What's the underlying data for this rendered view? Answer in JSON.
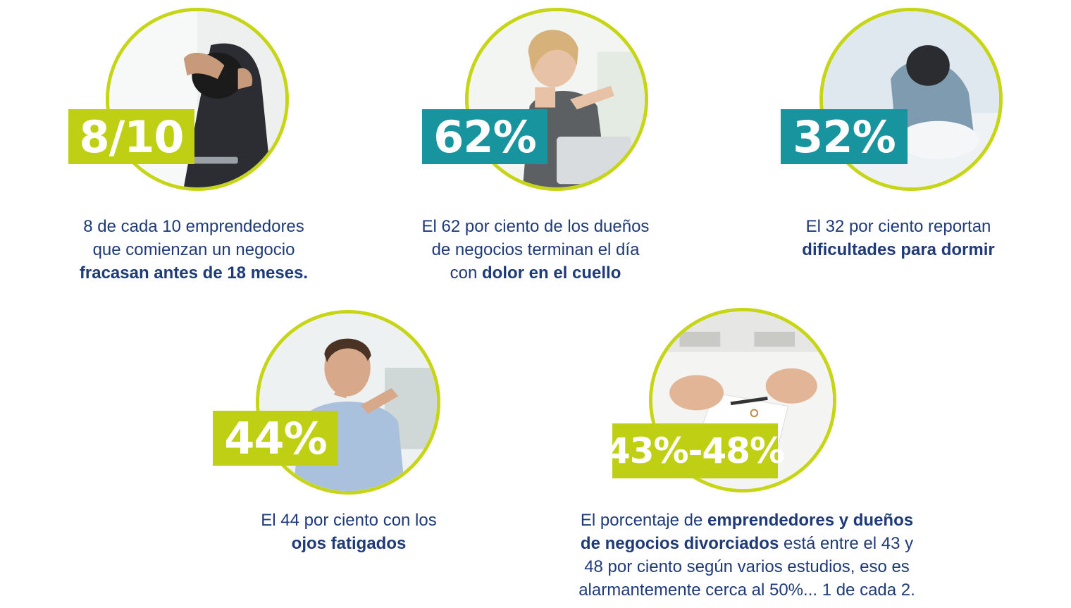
{
  "colors": {
    "lime": "#c6d617",
    "lime_badge": "#bfcf13",
    "teal": "#17949e",
    "text": "#1f3a78"
  },
  "stats": [
    {
      "badge": "8/10",
      "badge_color": "lime",
      "photo": "stressed-man-at-laptop-photo",
      "lines": [
        {
          "parts": [
            {
              "text": "8 de cada 10 emprendedores"
            }
          ]
        },
        {
          "parts": [
            {
              "text": "que comienzan un negocio"
            }
          ]
        },
        {
          "parts": [
            {
              "text": "fracasan antes de 18 meses.",
              "bold": true
            }
          ]
        }
      ]
    },
    {
      "badge": "62%",
      "badge_color": "teal",
      "photo": "woman-neck-pain-photo",
      "lines": [
        {
          "parts": [
            {
              "text": "El 62 por ciento de los dueños"
            }
          ]
        },
        {
          "parts": [
            {
              "text": "de negocios terminan el día"
            }
          ]
        },
        {
          "parts": [
            {
              "text": "con "
            },
            {
              "text": "dolor en el cuello",
              "bold": true
            }
          ]
        }
      ]
    },
    {
      "badge": "32%",
      "badge_color": "teal",
      "photo": "person-sleepless-bed-photo",
      "lines": [
        {
          "parts": [
            {
              "text": "El 32 por ciento reportan"
            }
          ]
        },
        {
          "parts": [
            {
              "text": "dificultades para dormir",
              "bold": true
            }
          ]
        }
      ]
    },
    {
      "badge": "44%",
      "badge_color": "lime",
      "photo": "man-tired-eyes-photo",
      "lines": [
        {
          "parts": [
            {
              "text": "El 44 por ciento con los"
            }
          ]
        },
        {
          "parts": [
            {
              "text": "ojos fatigados",
              "bold": true
            }
          ]
        }
      ]
    },
    {
      "badge": "43%-48%",
      "badge_color": "lime",
      "photo": "divorce-papers-hands-photo",
      "lines": [
        {
          "parts": [
            {
              "text": "El porcentaje de "
            },
            {
              "text": "emprendedores y dueños",
              "bold": true
            }
          ]
        },
        {
          "parts": [
            {
              "text": "de negocios divorciados",
              "bold": true
            },
            {
              "text": " está entre el 43 y"
            }
          ]
        },
        {
          "parts": [
            {
              "text": "48 por ciento según varios estudios, eso es"
            }
          ]
        },
        {
          "parts": [
            {
              "text": "alarmantemente cerca al 50%... 1 de cada 2."
            }
          ]
        }
      ]
    }
  ]
}
